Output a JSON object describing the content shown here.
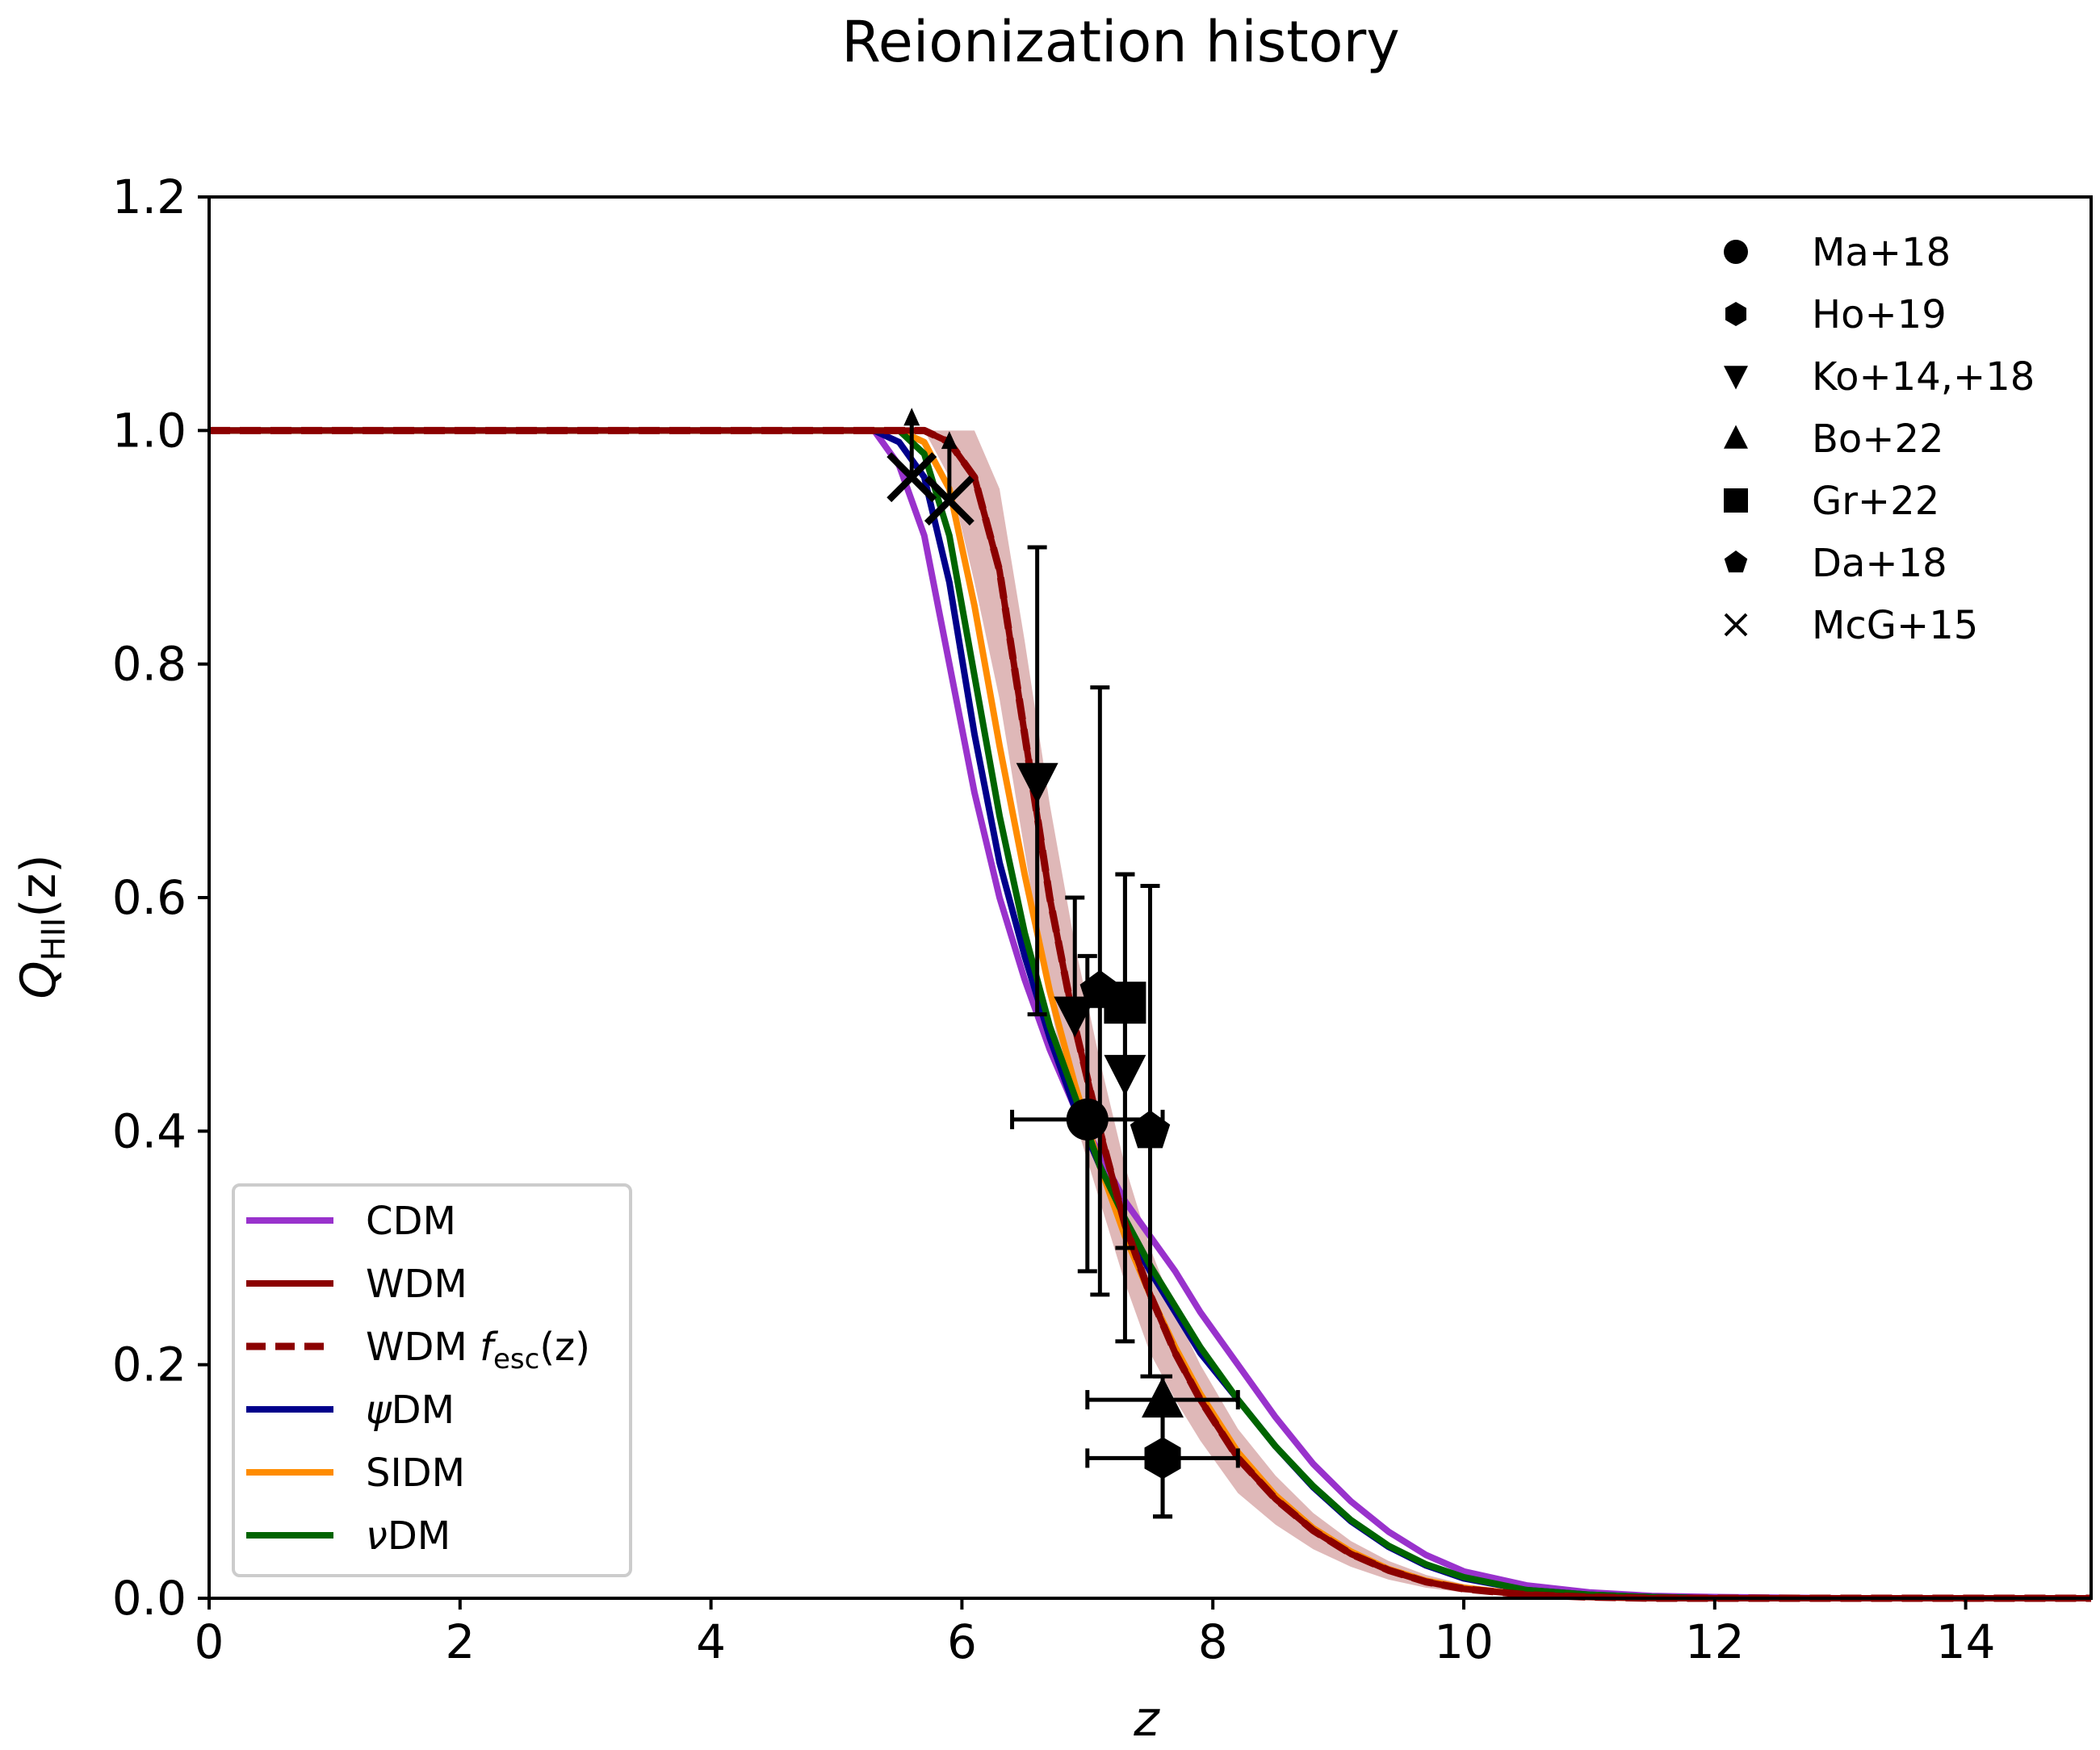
{
  "chart_data": {
    "type": "line",
    "title": "Reionization history",
    "xlabel": "z",
    "ylabel_main": "Q",
    "ylabel_sub": "HII",
    "ylabel_arg": "(z)",
    "xlim": [
      0,
      15
    ],
    "ylim": [
      0,
      1.2
    ],
    "xticks": [
      0,
      2,
      4,
      6,
      8,
      10,
      12,
      14
    ],
    "yticks": [
      0.0,
      0.2,
      0.4,
      0.6,
      0.8,
      1.0,
      1.2
    ],
    "xtick_labels": [
      "0",
      "2",
      "4",
      "6",
      "8",
      "10",
      "12",
      "14"
    ],
    "ytick_labels": [
      "0.0",
      "0.2",
      "0.4",
      "0.6",
      "0.8",
      "1.0",
      "1.2"
    ],
    "x": [
      0,
      5.3,
      5.5,
      5.7,
      5.9,
      6.1,
      6.3,
      6.5,
      6.7,
      6.9,
      7.1,
      7.3,
      7.5,
      7.7,
      7.9,
      8.2,
      8.5,
      8.8,
      9.1,
      9.4,
      9.7,
      10.0,
      10.5,
      11.0,
      11.5,
      12.0,
      13.0,
      14.0,
      15.0
    ],
    "series": [
      {
        "name": "CDM",
        "color": "#9932cc",
        "style": "solid",
        "label_main": "CDM",
        "values": [
          1.0,
          1.0,
          0.97,
          0.91,
          0.8,
          0.69,
          0.6,
          0.53,
          0.47,
          0.42,
          0.38,
          0.34,
          0.31,
          0.28,
          0.245,
          0.2,
          0.155,
          0.115,
          0.083,
          0.057,
          0.037,
          0.023,
          0.011,
          0.005,
          0.002,
          0.001,
          0.0,
          0.0,
          0.0
        ]
      },
      {
        "name": "WDM",
        "color": "#8b0000",
        "style": "solid",
        "label_main": "WDM",
        "values": [
          1.0,
          1.0,
          1.0,
          1.0,
          0.99,
          0.96,
          0.88,
          0.74,
          0.6,
          0.49,
          0.4,
          0.32,
          0.26,
          0.21,
          0.17,
          0.12,
          0.085,
          0.058,
          0.038,
          0.024,
          0.014,
          0.008,
          0.003,
          0.001,
          0.0,
          0.0,
          0.0,
          0.0,
          0.0
        ]
      },
      {
        "name": "WDM fesc(z)",
        "color": "#8b0000",
        "style": "dashed",
        "label_main": "WDM ",
        "label_f": "f",
        "label_sub": "esc",
        "label_arg": "(z)",
        "values": [
          1.0,
          1.0,
          1.0,
          1.0,
          0.99,
          0.96,
          0.88,
          0.74,
          0.6,
          0.49,
          0.4,
          0.32,
          0.26,
          0.21,
          0.17,
          0.12,
          0.085,
          0.058,
          0.038,
          0.024,
          0.014,
          0.008,
          0.003,
          0.001,
          0.0,
          0.0,
          0.0,
          0.0,
          0.0
        ]
      },
      {
        "name": "ψDM",
        "color": "#00008b",
        "style": "solid",
        "label_main": "DM",
        "label_greek": "ψ",
        "values": [
          1.0,
          1.0,
          0.99,
          0.96,
          0.87,
          0.74,
          0.63,
          0.55,
          0.48,
          0.42,
          0.37,
          0.32,
          0.28,
          0.245,
          0.21,
          0.17,
          0.13,
          0.095,
          0.066,
          0.044,
          0.028,
          0.017,
          0.007,
          0.003,
          0.001,
          0.0,
          0.0,
          0.0,
          0.0
        ]
      },
      {
        "name": "SIDM",
        "color": "#ff8c00",
        "style": "solid",
        "label_main": "SIDM",
        "values": [
          1.0,
          1.0,
          1.0,
          0.99,
          0.95,
          0.85,
          0.73,
          0.62,
          0.52,
          0.44,
          0.37,
          0.31,
          0.26,
          0.215,
          0.175,
          0.125,
          0.088,
          0.06,
          0.04,
          0.025,
          0.015,
          0.009,
          0.003,
          0.001,
          0.0,
          0.0,
          0.0,
          0.0,
          0.0
        ]
      },
      {
        "name": "νDM",
        "color": "#006400",
        "style": "solid",
        "label_main": "DM",
        "label_greek": "ν",
        "values": [
          1.0,
          1.0,
          1.0,
          0.98,
          0.91,
          0.79,
          0.67,
          0.57,
          0.49,
          0.43,
          0.37,
          0.325,
          0.285,
          0.25,
          0.215,
          0.17,
          0.13,
          0.096,
          0.067,
          0.045,
          0.029,
          0.018,
          0.007,
          0.003,
          0.001,
          0.0,
          0.0,
          0.0,
          0.0
        ]
      }
    ],
    "band": {
      "color": "#d4a0a0",
      "upper": [
        1.0,
        1.0,
        1.0,
        1.0,
        1.0,
        1.0,
        0.95,
        0.82,
        0.68,
        0.56,
        0.46,
        0.37,
        0.3,
        0.245,
        0.2,
        0.145,
        0.105,
        0.073,
        0.049,
        0.032,
        0.02,
        0.012,
        0.005,
        0.002,
        0.001,
        0.0,
        0.0,
        0.0,
        0.0
      ],
      "lower": [
        1.0,
        1.0,
        1.0,
        1.0,
        0.96,
        0.87,
        0.77,
        0.64,
        0.51,
        0.41,
        0.34,
        0.27,
        0.21,
        0.17,
        0.135,
        0.09,
        0.063,
        0.042,
        0.027,
        0.016,
        0.009,
        0.005,
        0.002,
        0.0,
        0.0,
        0.0,
        0.0,
        0.0,
        0.0
      ]
    },
    "observations": [
      {
        "marker": "circle",
        "x": 7.0,
        "y": 0.41,
        "xerr": [
          0.6,
          0.6
        ],
        "yerr": [
          0.13,
          0.14
        ]
      },
      {
        "marker": "hexagon",
        "x": 7.6,
        "y": 0.12,
        "xerr": [
          0.6,
          0.6
        ],
        "yerr": [
          0.05,
          0.05
        ]
      },
      {
        "marker": "triangle_down",
        "x": 6.6,
        "y": 0.7,
        "xerr": [
          0,
          0
        ],
        "yerr": [
          0.2,
          0.2
        ]
      },
      {
        "marker": "triangle_down",
        "x": 6.9,
        "y": 0.5,
        "xerr": [
          0,
          0
        ],
        "yerr": [
          0.0,
          0.1
        ]
      },
      {
        "marker": "triangle_down",
        "x": 7.3,
        "y": 0.45,
        "xerr": [
          0,
          0
        ],
        "yerr": [
          0.15,
          0.17
        ]
      },
      {
        "marker": "triangle_up",
        "x": 7.6,
        "y": 0.17,
        "xerr": [
          0.6,
          0.6
        ],
        "yerr": [
          0.1,
          0.02
        ]
      },
      {
        "marker": "square",
        "x": 7.3,
        "y": 0.51,
        "xerr": [
          0,
          0
        ],
        "yerr": [
          0.29,
          0.11
        ]
      },
      {
        "marker": "pentagon",
        "x": 7.5,
        "y": 0.4,
        "xerr": [
          0,
          0
        ],
        "yerr": [
          0.21,
          0.21
        ]
      },
      {
        "marker": "pentagon",
        "x": 7.1,
        "y": 0.52,
        "xerr": [
          0,
          0
        ],
        "yerr": [
          0.26,
          0.26
        ]
      },
      {
        "marker": "x",
        "x": 5.6,
        "y": 0.96,
        "xerr": [
          0,
          0
        ],
        "yerr": [
          0,
          0
        ],
        "lowerlimit": true
      },
      {
        "marker": "x",
        "x": 5.9,
        "y": 0.94,
        "xerr": [
          0,
          0
        ],
        "yerr": [
          0,
          0
        ],
        "lowerlimit": true
      }
    ],
    "marker_legend": [
      {
        "marker": "circle",
        "label": "Ma+18"
      },
      {
        "marker": "hexagon",
        "label": "Ho+19"
      },
      {
        "marker": "triangle_down",
        "label": "Ko+14,+18"
      },
      {
        "marker": "triangle_up",
        "label": "Bo+22"
      },
      {
        "marker": "square",
        "label": "Gr+22"
      },
      {
        "marker": "pentagon",
        "label": "Da+18"
      },
      {
        "marker": "x",
        "label": "McG+15"
      }
    ],
    "line_legend_placement": "lower-left",
    "marker_legend_placement": "upper-right"
  }
}
